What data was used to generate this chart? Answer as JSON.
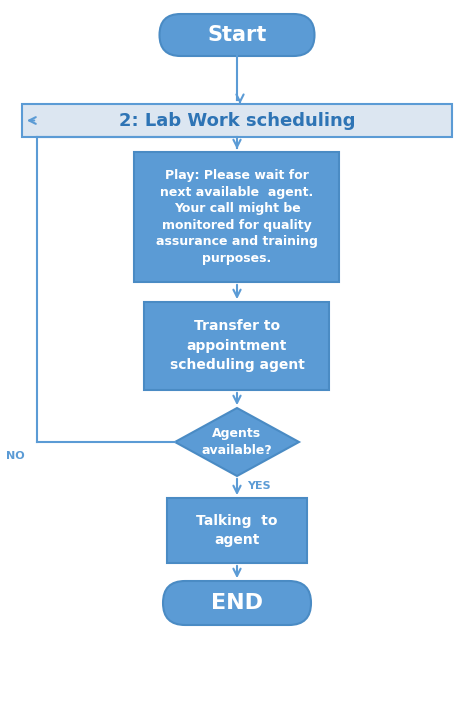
{
  "bg_color": "#ffffff",
  "box_color": "#5b9bd5",
  "box_edge_color": "#4a8bc4",
  "text_color": "#ffffff",
  "label_rect_color": "#dce6f1",
  "label_rect_edge": "#5b9bd5",
  "label_text_color": "#2e74b5",
  "arrow_color": "#5b9bd5",
  "no_yes_color": "#5b9bd5",
  "title": "2: Lab Work scheduling",
  "start_text": "Start",
  "end_text": "END",
  "play_text": "Play: Please wait for\nnext available  agent.\nYour call might be\nmonitored for quality\nassurance and training\npurposes.",
  "transfer_text": "Transfer to\nappointment\nscheduling agent",
  "agents_text": "Agents\navailable?",
  "talking_text": "Talking  to\nagent",
  "no_label": "NO",
  "yes_label": "YES",
  "figsize": [
    4.74,
    7.06
  ],
  "dpi": 100
}
